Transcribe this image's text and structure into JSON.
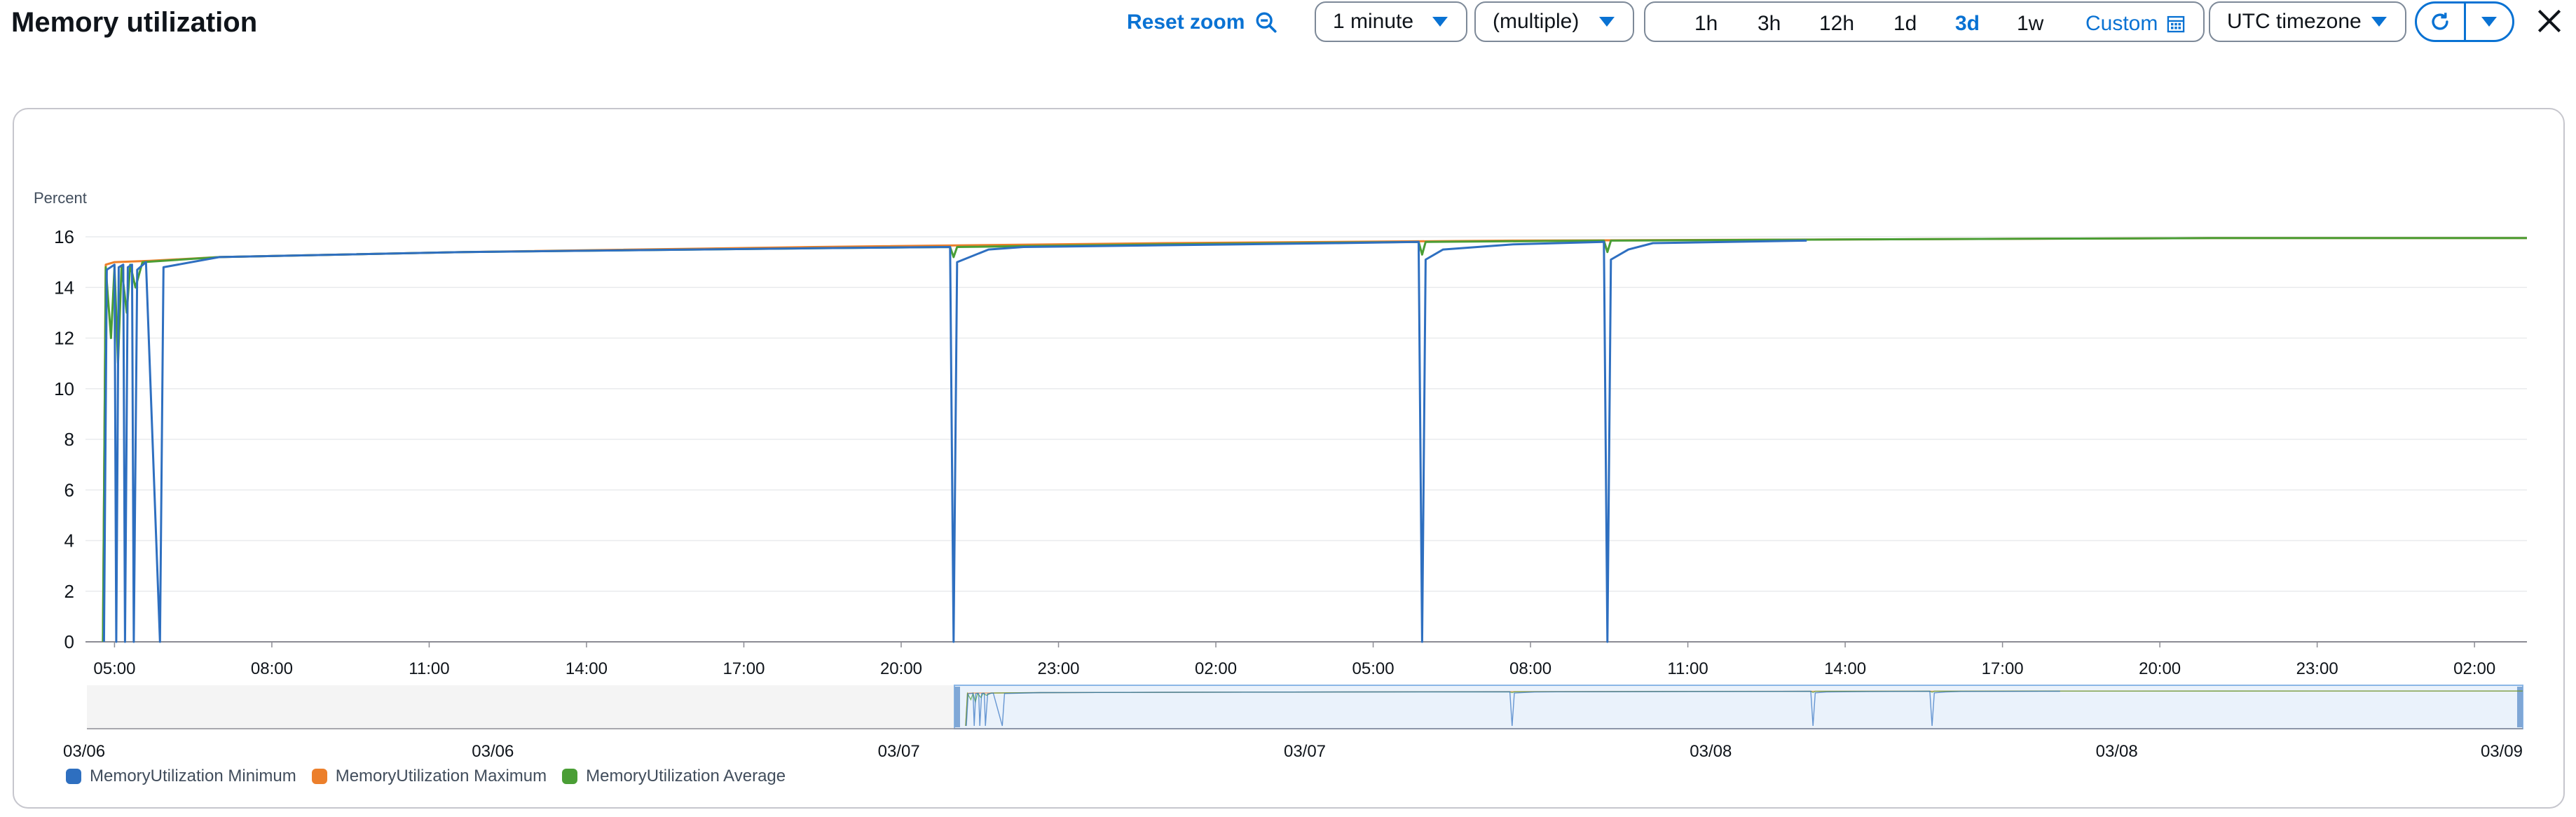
{
  "header": {
    "title": "Memory utilization",
    "reset_zoom_label": "Reset zoom",
    "period_value": "1 minute",
    "stat_value": "(multiple)",
    "ranges": [
      "1h",
      "3h",
      "12h",
      "1d",
      "3d",
      "1w"
    ],
    "active_range": "3d",
    "custom_label": "Custom",
    "timezone_value": "UTC timezone",
    "icons": {
      "reset_zoom": "zoom-out-icon",
      "custom": "calendar-icon",
      "refresh": "refresh-icon",
      "refresh_menu": "caret-down-icon",
      "close": "close-icon"
    },
    "accent_color": "#0972d3"
  },
  "chart_data": {
    "type": "line",
    "ylabel": "Percent",
    "ylim": [
      0,
      16
    ],
    "yticks": [
      "0",
      "2",
      "4",
      "6",
      "8",
      "10",
      "12",
      "14",
      "16"
    ],
    "xticks": [
      "05:00",
      "08:00",
      "11:00",
      "14:00",
      "17:00",
      "20:00",
      "23:00",
      "02:00",
      "05:00",
      "08:00",
      "11:00",
      "14:00",
      "17:00",
      "20:00",
      "23:00",
      "02:00"
    ],
    "x_unit": "hours since 03/06 05:00 (axis 03/06 04:10 – 03/09 02:00)",
    "xlim": [
      -0.83,
      69
    ],
    "grid": true,
    "series": [
      {
        "name": "MemoryUtilization Minimum",
        "color": "#2e6fc0",
        "points": [
          [
            -0.3,
            0
          ],
          [
            -0.22,
            14.7
          ],
          [
            0.0,
            14.9
          ],
          [
            0.05,
            0
          ],
          [
            0.12,
            14.8
          ],
          [
            0.25,
            14.9
          ],
          [
            0.3,
            0
          ],
          [
            0.38,
            14.8
          ],
          [
            0.5,
            14.9
          ],
          [
            0.55,
            0
          ],
          [
            0.65,
            14.7
          ],
          [
            0.9,
            15.0
          ],
          [
            1.3,
            0
          ],
          [
            1.4,
            14.8
          ],
          [
            3,
            15.2
          ],
          [
            10,
            15.4
          ],
          [
            20,
            15.55
          ],
          [
            23.9,
            15.6
          ],
          [
            24.0,
            0
          ],
          [
            24.1,
            15.0
          ],
          [
            25,
            15.5
          ],
          [
            26,
            15.6
          ],
          [
            35,
            15.75
          ],
          [
            37.3,
            15.8
          ],
          [
            37.4,
            0
          ],
          [
            37.5,
            15.1
          ],
          [
            38,
            15.5
          ],
          [
            40,
            15.7
          ],
          [
            42.6,
            15.8
          ],
          [
            42.7,
            0
          ],
          [
            42.8,
            15.1
          ],
          [
            43.3,
            15.5
          ],
          [
            44,
            15.75
          ],
          [
            48.4,
            15.85
          ]
        ]
      },
      {
        "name": "MemoryUtilization Maximum",
        "color": "#ec7f2b",
        "points": [
          [
            -0.33,
            0
          ],
          [
            -0.25,
            14.9
          ],
          [
            0,
            15.0
          ],
          [
            1,
            15.05
          ],
          [
            3,
            15.2
          ],
          [
            10,
            15.4
          ],
          [
            20,
            15.6
          ],
          [
            30,
            15.75
          ],
          [
            40,
            15.85
          ],
          [
            50,
            15.9
          ],
          [
            60,
            15.95
          ],
          [
            69,
            15.95
          ]
        ]
      },
      {
        "name": "MemoryUtilization Average",
        "color": "#4a9e35",
        "points": [
          [
            -0.33,
            0
          ],
          [
            -0.25,
            14.8
          ],
          [
            -0.1,
            12
          ],
          [
            0.0,
            14.8
          ],
          [
            0.1,
            11
          ],
          [
            0.2,
            14.8
          ],
          [
            0.35,
            13
          ],
          [
            0.45,
            14.9
          ],
          [
            0.6,
            14.0
          ],
          [
            0.8,
            15.0
          ],
          [
            3,
            15.2
          ],
          [
            10,
            15.4
          ],
          [
            20,
            15.55
          ],
          [
            23.9,
            15.6
          ],
          [
            24.0,
            15.2
          ],
          [
            24.1,
            15.6
          ],
          [
            30,
            15.7
          ],
          [
            37.3,
            15.8
          ],
          [
            37.4,
            15.3
          ],
          [
            37.5,
            15.8
          ],
          [
            42.6,
            15.85
          ],
          [
            42.7,
            15.4
          ],
          [
            42.8,
            15.85
          ],
          [
            50,
            15.9
          ],
          [
            60,
            15.95
          ],
          [
            69,
            15.95
          ]
        ]
      }
    ],
    "navigator": {
      "tick_labels": [
        "03/06",
        "03/06",
        "03/07",
        "03/07",
        "03/08",
        "03/08",
        "03/09"
      ]
    }
  }
}
